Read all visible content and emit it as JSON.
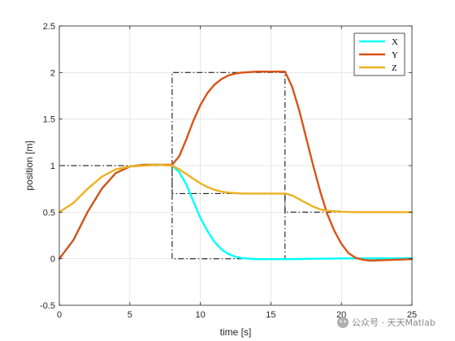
{
  "chart_data": {
    "type": "line",
    "xlabel": "time [s]",
    "ylabel": "position [m]",
    "xlim": [
      0,
      25
    ],
    "ylim": [
      -0.5,
      2.5
    ],
    "xticks": [
      0,
      5,
      10,
      15,
      20,
      25
    ],
    "yticks": [
      -0.5,
      0,
      0.5,
      1,
      1.5,
      2,
      2.5
    ],
    "xtick_labels": [
      "0",
      "5",
      "10",
      "15",
      "20",
      "25"
    ],
    "ytick_labels": [
      "-0.5",
      "0",
      "0.5",
      "1",
      "1.5",
      "2",
      "2.5"
    ],
    "grid": true,
    "legend_placement": "top-right",
    "series": [
      {
        "name": "X",
        "color": "#00ffff",
        "x": [
          0,
          1,
          2,
          3,
          4,
          5,
          6,
          7,
          8,
          8.5,
          9,
          9.5,
          10,
          10.5,
          11,
          11.5,
          12,
          12.5,
          13,
          14,
          15,
          16,
          17,
          18,
          20,
          22,
          25
        ],
        "y": [
          0,
          0.2,
          0.5,
          0.75,
          0.92,
          0.99,
          1.01,
          1.01,
          1.0,
          0.93,
          0.8,
          0.62,
          0.44,
          0.3,
          0.18,
          0.1,
          0.05,
          0.02,
          0.005,
          -0.005,
          -0.005,
          -0.005,
          -0.003,
          0.0,
          0.003,
          0.004,
          0.005
        ]
      },
      {
        "name": "Y",
        "color": "#d95319",
        "x": [
          0,
          1,
          2,
          3,
          4,
          5,
          6,
          7,
          8,
          8.5,
          9,
          9.5,
          10,
          10.5,
          11,
          11.5,
          12,
          12.5,
          13,
          13.5,
          14,
          15,
          16,
          16.5,
          17,
          17.5,
          18,
          18.5,
          19,
          19.5,
          20,
          20.5,
          21,
          21.5,
          22,
          23,
          24,
          25
        ],
        "y": [
          0,
          0.2,
          0.5,
          0.75,
          0.92,
          0.99,
          1.01,
          1.01,
          1.01,
          1.1,
          1.28,
          1.48,
          1.65,
          1.78,
          1.87,
          1.93,
          1.97,
          1.99,
          2.0,
          2.005,
          2.01,
          2.01,
          2.01,
          1.85,
          1.6,
          1.3,
          1.0,
          0.72,
          0.48,
          0.3,
          0.16,
          0.06,
          0.01,
          -0.01,
          -0.02,
          -0.015,
          -0.01,
          -0.005
        ]
      },
      {
        "name": "Z",
        "color": "#edb120",
        "x": [
          0,
          1,
          2,
          3,
          4,
          5,
          6,
          7,
          8,
          8.5,
          9,
          9.5,
          10,
          10.5,
          11,
          11.5,
          12,
          13,
          14,
          15,
          16,
          16.5,
          17,
          17.5,
          18,
          18.5,
          19,
          19.5,
          20,
          21,
          22,
          23,
          25
        ],
        "y": [
          0.5,
          0.6,
          0.75,
          0.88,
          0.96,
          0.99,
          1.0,
          1.01,
          1.0,
          0.96,
          0.91,
          0.86,
          0.81,
          0.77,
          0.74,
          0.72,
          0.71,
          0.7,
          0.7,
          0.7,
          0.7,
          0.68,
          0.64,
          0.6,
          0.56,
          0.53,
          0.515,
          0.51,
          0.505,
          0.5,
          0.5,
          0.5,
          0.5
        ]
      }
    ],
    "reference_paths": [
      {
        "color": "#000000",
        "style": "dash-dot",
        "x": [
          0,
          8,
          8,
          16,
          16,
          25
        ],
        "y": [
          1,
          1,
          0,
          0,
          0,
          0
        ]
      },
      {
        "color": "#000000",
        "style": "dash-dot",
        "x": [
          8,
          8,
          16,
          16,
          25
        ],
        "y": [
          1,
          2,
          2,
          0,
          0
        ]
      },
      {
        "color": "#000000",
        "style": "dash-dot",
        "x": [
          8,
          8,
          16,
          16,
          25
        ],
        "y": [
          1,
          0.7,
          0.7,
          0.5,
          0.5
        ]
      }
    ]
  },
  "watermark": {
    "text": "公众号 · 天天Matlab"
  }
}
